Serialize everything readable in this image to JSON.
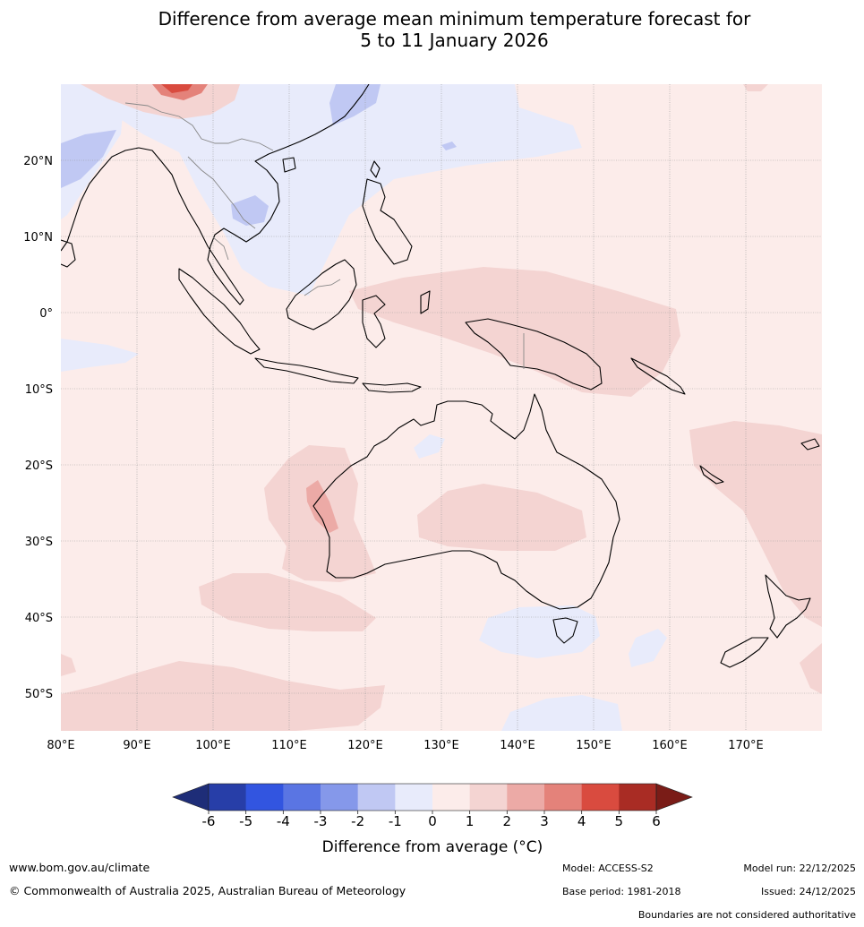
{
  "title_line1": "Difference from average mean minimum temperature forecast for",
  "title_line2": "5 to 11 January 2026",
  "lat_labels": [
    "20°N",
    "10°N",
    "0°",
    "10°S",
    "20°S",
    "30°S",
    "40°S",
    "50°S"
  ],
  "lon_labels": [
    "80°E",
    "90°E",
    "100°E",
    "110°E",
    "120°E",
    "130°E",
    "140°E",
    "150°E",
    "160°E",
    "170°E"
  ],
  "colorbar": {
    "ticks": [
      "-6",
      "-5",
      "-4",
      "-3",
      "-2",
      "-1",
      "0",
      "1",
      "2",
      "3",
      "4",
      "5",
      "6"
    ],
    "colors": [
      "#273ea8",
      "#3255e0",
      "#5a75e3",
      "#8598ea",
      "#c0c8f3",
      "#e8ebfb",
      "#fcecea",
      "#f4d4d2",
      "#ecaaa6",
      "#e4827a",
      "#d94b3f",
      "#a92c24"
    ],
    "min_arrow_color": "#1e2d78",
    "max_arrow_color": "#7a1c17",
    "label": "Difference from average (°C)"
  },
  "footer": {
    "url": "www.bom.gov.au/climate",
    "copyright": "© Commonwealth of Australia 2025, Australian Bureau of Meteorology",
    "model": "Model: ACCESS-S2",
    "base_period": "Base period: 1981-2018",
    "model_run": "Model run: 22/12/2025",
    "issued": "Issued: 24/12/2025",
    "disclaimer": "Boundaries are not considered authoritative"
  }
}
